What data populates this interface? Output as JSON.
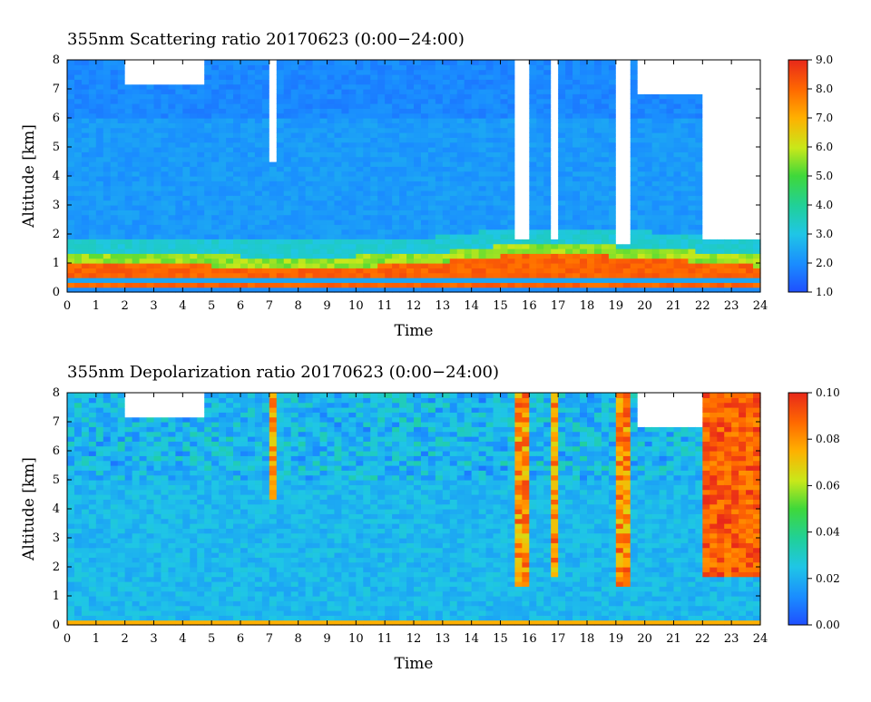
{
  "chart_data": [
    {
      "type": "heatmap",
      "title": "355nm Scattering ratio  20170623 (0:00−24:00)",
      "xlabel": "Time",
      "ylabel": "Altitude [km]",
      "xlim": [
        0,
        24
      ],
      "ylim": [
        0,
        8
      ],
      "xticks": [
        "0",
        "1",
        "2",
        "3",
        "4",
        "5",
        "6",
        "7",
        "8",
        "9",
        "10",
        "11",
        "12",
        "13",
        "14",
        "15",
        "16",
        "17",
        "18",
        "19",
        "20",
        "21",
        "22",
        "23",
        "24"
      ],
      "yticks": [
        "0",
        "1",
        "2",
        "3",
        "4",
        "5",
        "6",
        "7",
        "8"
      ],
      "colorbar": {
        "range": [
          1.0,
          9.0
        ],
        "ticks": [
          "1.0",
          "2.0",
          "3.0",
          "4.0",
          "5.0",
          "6.0",
          "7.0",
          "8.0",
          "9.0"
        ]
      },
      "features": {
        "background_value": 2.2,
        "boundary_layer_top_km": [
          [
            0,
            1.0
          ],
          [
            6,
            0.9
          ],
          [
            8,
            0.85
          ],
          [
            12,
            0.95
          ],
          [
            16,
            1.35
          ],
          [
            20,
            1.2
          ],
          [
            24,
            0.9
          ]
        ],
        "surface_layer_km": [
          0.3,
          0.5
        ],
        "high_clouds": [
          {
            "x_hours": [
              2.1,
              4.8
            ],
            "alt_km": [
              7.2,
              8.0
            ]
          },
          {
            "x_hours": [
              19.8,
              22.0
            ],
            "alt_km": [
              6.8,
              8.0
            ]
          },
          {
            "x_hours": [
              22.0,
              24.0
            ],
            "alt_km": [
              1.8,
              8.0
            ]
          }
        ],
        "missing_columns": [
          {
            "x_hours": [
              6.95,
              7.15
            ],
            "alt_km": [
              4.5,
              8.0
            ]
          },
          {
            "x_hours": [
              15.5,
              16.0
            ],
            "alt_km": [
              1.8,
              8.0
            ]
          },
          {
            "x_hours": [
              16.7,
              16.9
            ],
            "alt_km": [
              1.9,
              8.0
            ]
          },
          {
            "x_hours": [
              19.1,
              19.6
            ],
            "alt_km": [
              1.6,
              8.0
            ]
          }
        ]
      }
    },
    {
      "type": "heatmap",
      "title": "355nm Depolarization ratio  20170623 (0:00−24:00)",
      "xlabel": "Time",
      "ylabel": "Altitude [km]",
      "xlim": [
        0,
        24
      ],
      "ylim": [
        0,
        8
      ],
      "xticks": [
        "0",
        "1",
        "2",
        "3",
        "4",
        "5",
        "6",
        "7",
        "8",
        "9",
        "10",
        "11",
        "12",
        "13",
        "14",
        "15",
        "16",
        "17",
        "18",
        "19",
        "20",
        "21",
        "22",
        "23",
        "24"
      ],
      "yticks": [
        "0",
        "1",
        "2",
        "3",
        "4",
        "5",
        "6",
        "7",
        "8"
      ],
      "colorbar": {
        "range": [
          0.0,
          0.1
        ],
        "ticks": [
          "0.00",
          "0.02",
          "0.04",
          "0.06",
          "0.08",
          "0.10"
        ]
      },
      "features": {
        "background_value": 0.022,
        "high_clouds": [
          {
            "x_hours": [
              2.1,
              4.8
            ],
            "alt_km": [
              7.2,
              8.0
            ]
          },
          {
            "x_hours": [
              19.8,
              22.0
            ],
            "alt_km": [
              6.8,
              8.0
            ]
          },
          {
            "x_hours": [
              22.0,
              24.0
            ],
            "alt_km": [
              1.6,
              8.0
            ],
            "value": 0.09
          }
        ],
        "high_depol_columns": [
          {
            "x_hours": [
              6.9,
              7.2
            ],
            "alt_km": [
              4.3,
              8.0
            ]
          },
          {
            "x_hours": [
              15.5,
              16.0
            ],
            "alt_km": [
              1.4,
              8.0
            ]
          },
          {
            "x_hours": [
              16.7,
              16.9
            ],
            "alt_km": [
              1.6,
              8.0
            ]
          },
          {
            "x_hours": [
              19.1,
              19.6
            ],
            "alt_km": [
              1.4,
              8.0
            ]
          }
        ]
      }
    }
  ]
}
